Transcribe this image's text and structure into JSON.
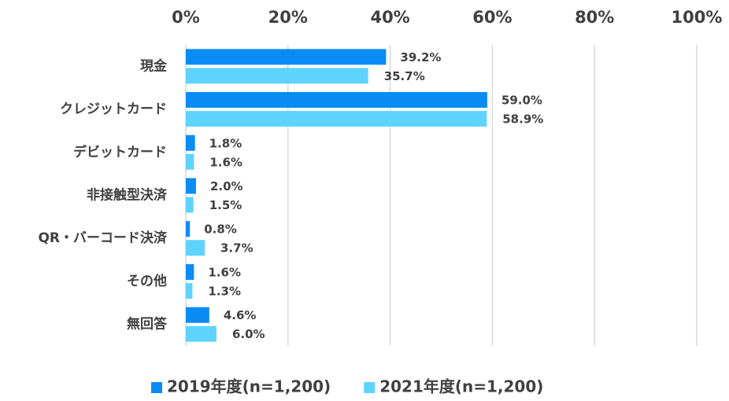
{
  "chart_data": {
    "type": "bar",
    "orientation": "horizontal",
    "categories": [
      "現金",
      "クレジットカード",
      "デビットカード",
      "非接触型決済",
      "QR・バーコード決済",
      "その他",
      "無回答"
    ],
    "series": [
      {
        "name": "2019年度(n=1,200)",
        "color": "#0a8cf5",
        "values": [
          39.2,
          59.0,
          1.8,
          2.0,
          0.8,
          1.6,
          4.6
        ],
        "value_labels": [
          "39.2%",
          "59.0%",
          "1.8%",
          "2.0%",
          "0.8%",
          "1.6%",
          "4.6%"
        ]
      },
      {
        "name": "2021年度(n=1,200)",
        "color": "#5fd3ff",
        "values": [
          35.7,
          58.9,
          1.6,
          1.5,
          3.7,
          1.3,
          6.0
        ],
        "value_labels": [
          "35.7%",
          "58.9%",
          "1.6%",
          "1.5%",
          "3.7%",
          "1.3%",
          "6.0%"
        ]
      }
    ],
    "xlim": [
      0,
      100
    ],
    "xticks": [
      {
        "value": 0,
        "label": "0%"
      },
      {
        "value": 20,
        "label": "20%"
      },
      {
        "value": 40,
        "label": "40%"
      },
      {
        "value": 60,
        "label": "60%"
      },
      {
        "value": 80,
        "label": "80%"
      },
      {
        "value": 100,
        "label": "100%"
      }
    ],
    "grid": true,
    "legend": "bottom"
  }
}
